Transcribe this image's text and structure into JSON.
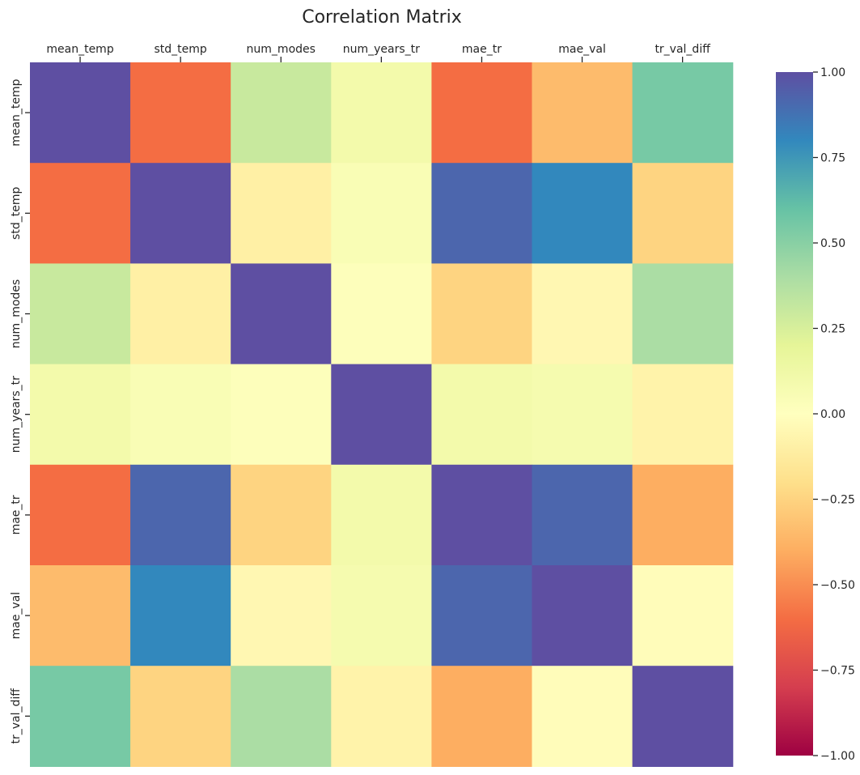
{
  "chart_data": {
    "type": "heatmap",
    "title": "Correlation Matrix",
    "x_labels": [
      "mean_temp",
      "std_temp",
      "num_modes",
      "num_years_tr",
      "mae_tr",
      "mae_val",
      "tr_val_diff"
    ],
    "y_labels": [
      "mean_temp",
      "std_temp",
      "num_modes",
      "num_years_tr",
      "mae_tr",
      "mae_val",
      "tr_val_diff"
    ],
    "x_axis_position": "top",
    "values": [
      [
        1.0,
        -0.6,
        0.3,
        0.1,
        -0.6,
        -0.35,
        0.55
      ],
      [
        -0.6,
        1.0,
        -0.1,
        0.05,
        0.92,
        0.8,
        -0.25
      ],
      [
        0.3,
        -0.1,
        1.0,
        0.02,
        -0.25,
        -0.05,
        0.4
      ],
      [
        0.1,
        0.05,
        0.02,
        1.0,
        0.1,
        0.08,
        -0.08
      ],
      [
        -0.6,
        0.92,
        -0.25,
        0.1,
        1.0,
        0.92,
        -0.4
      ],
      [
        -0.35,
        0.8,
        -0.05,
        0.08,
        0.92,
        1.0,
        -0.02
      ],
      [
        0.55,
        -0.25,
        0.4,
        -0.08,
        -0.4,
        -0.02,
        1.0
      ]
    ],
    "colormap": "Spectral",
    "vmin": -1.0,
    "vmax": 1.0,
    "colorbar": {
      "ticks": [
        1.0,
        0.75,
        0.5,
        0.25,
        0.0,
        -0.25,
        -0.5,
        -0.75,
        -1.0
      ],
      "tick_labels": [
        "1.00",
        "0.75",
        "0.50",
        "0.25",
        "0.00",
        "−0.25",
        "−0.50",
        "−0.75",
        "−1.00"
      ],
      "position": "right"
    }
  }
}
